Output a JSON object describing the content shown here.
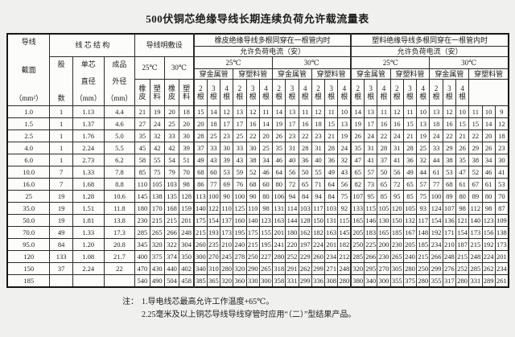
{
  "title": "500伏铜芯绝缘导线长期连续负荷允许载流量表",
  "notes": {
    "label": "注：",
    "items": [
      "1.导电线芯最高允许工作温度+65℃。",
      "2.25毫米及以上铜芯导线导线穿管时应用“（二）”型结果产品。"
    ]
  },
  "table": {
    "header_rows": [
      [
        {
          "lines": [
            "导线",
            "截面",
            "（mm²）"
          ],
          "rs": 5,
          "cls": "tall",
          "name": "header-conductor-cross-section"
        },
        {
          "t": "线 芯 结 构",
          "cs": 3,
          "rs": 2,
          "name": "header-core-structure"
        },
        {
          "t": "导线明敷设",
          "cs": 4,
          "rs": 2,
          "name": "header-open-wiring"
        },
        {
          "t": "橡皮绝缘导线多根同穿在一根管内时",
          "cs": 12,
          "name": "header-rubber-insulated-section"
        },
        {
          "t": "塑料绝缘导线多根同穿在一根管内时",
          "cs": 12,
          "name": "header-plastic-insulated-section"
        }
      ],
      [
        {
          "t": "允许负荷电流（安）",
          "cs": 12,
          "name": "header-allowed-load-current"
        },
        {
          "t": "允许负荷电流（安）",
          "cs": 12,
          "name": "header-allowed-load-current"
        }
      ],
      [
        {
          "lines": [
            "股",
            "数"
          ],
          "rs": 3,
          "cls": "sp",
          "name": "header-strand-count"
        },
        {
          "lines": [
            "单芯",
            "直径",
            "（mm）"
          ],
          "rs": 3,
          "cls": "sp",
          "name": "header-single-core-diameter"
        },
        {
          "lines": [
            "成品",
            "外径",
            "（mm）"
          ],
          "rs": 3,
          "cls": "sp",
          "name": "header-finished-outer-diameter"
        },
        {
          "t": "25℃",
          "cs": 2,
          "rs": 2,
          "name": "header-temp-25"
        },
        {
          "t": "30℃",
          "cs": 2,
          "rs": 2,
          "name": "header-temp-30"
        },
        {
          "t": "25℃",
          "cs": 6,
          "name": "header-temp-25"
        },
        {
          "t": "30℃",
          "cs": 6,
          "name": "header-temp-30"
        },
        {
          "t": "25℃",
          "cs": 6,
          "name": "header-temp-25"
        },
        {
          "t": "30℃",
          "cs": 6,
          "name": "header-temp-30"
        }
      ],
      [
        {
          "t": "穿金属管",
          "cs": 3,
          "name": "header-metal-conduit"
        },
        {
          "t": "穿塑料管",
          "cs": 3,
          "name": "header-plastic-conduit"
        },
        {
          "t": "穿金属管",
          "cs": 3,
          "name": "header-metal-conduit"
        },
        {
          "t": "穿塑料管",
          "cs": 3,
          "name": "header-plastic-conduit"
        },
        {
          "t": "穿金属管",
          "cs": 3,
          "name": "header-metal-conduit"
        },
        {
          "t": "穿塑料管",
          "cs": 3,
          "name": "header-plastic-conduit"
        },
        {
          "t": "穿金属管",
          "cs": 3,
          "name": "header-metal-conduit"
        },
        {
          "t": "穿塑料管",
          "cs": 3,
          "name": "header-plastic-conduit"
        }
      ],
      [
        {
          "lines": [
            "橡",
            "皮"
          ],
          "name": "header-rubber"
        },
        {
          "lines": [
            "塑",
            "料"
          ],
          "name": "header-plastic"
        },
        {
          "lines": [
            "橡",
            "皮"
          ],
          "name": "header-rubber"
        },
        {
          "lines": [
            "塑",
            "料"
          ],
          "name": "header-plastic"
        },
        {
          "lines": [
            "2",
            "根"
          ],
          "name": "header-2-wires"
        },
        {
          "lines": [
            "3",
            "根"
          ],
          "name": "header-3-wires"
        },
        {
          "lines": [
            "4",
            "根"
          ],
          "name": "header-4-wires"
        },
        {
          "lines": [
            "2",
            "根"
          ],
          "name": "header-2-wires"
        },
        {
          "lines": [
            "3",
            "根"
          ],
          "name": "header-3-wires"
        },
        {
          "lines": [
            "4",
            "根"
          ],
          "name": "header-4-wires"
        },
        {
          "lines": [
            "2",
            "根"
          ],
          "name": "header-2-wires"
        },
        {
          "lines": [
            "3",
            "根"
          ],
          "name": "header-3-wires"
        },
        {
          "lines": [
            "4",
            "根"
          ],
          "name": "header-4-wires"
        },
        {
          "lines": [
            "2",
            "根"
          ],
          "name": "header-2-wires"
        },
        {
          "lines": [
            "3",
            "根"
          ],
          "name": "header-3-wires"
        },
        {
          "lines": [
            "4",
            "根"
          ],
          "name": "header-4-wires"
        },
        {
          "lines": [
            "2",
            "根"
          ],
          "name": "header-2-wires"
        },
        {
          "lines": [
            "3",
            "根"
          ],
          "name": "header-3-wires"
        },
        {
          "lines": [
            "4",
            "根"
          ],
          "name": "header-4-wires"
        },
        {
          "lines": [
            "2",
            "根"
          ],
          "name": "header-2-wires"
        },
        {
          "lines": [
            "3",
            "根"
          ],
          "name": "header-3-wires"
        },
        {
          "lines": [
            "4",
            "根"
          ],
          "name": "header-4-wires"
        },
        {
          "lines": [
            "2",
            "根"
          ],
          "name": "header-2-wires"
        },
        {
          "lines": [
            "3",
            "根"
          ],
          "name": "header-3-wires"
        },
        {
          "lines": [
            "4",
            "根"
          ],
          "name": "header-4-wires"
        }
      ]
    ],
    "rows": [
      [
        "1.0",
        "1",
        "1.13",
        "4.4",
        "21",
        "19",
        "20",
        "18",
        "15",
        "14",
        "12",
        "13",
        "12",
        "11",
        "14",
        "13",
        "11",
        "12",
        "11",
        "10",
        "14",
        "13",
        "11",
        "12",
        "11",
        "10",
        "13",
        "12",
        "10",
        "11",
        "10",
        "9"
      ],
      [
        "1.5",
        "1",
        "1.37",
        "4.6",
        "27",
        "24",
        "25",
        "20",
        "20",
        "18",
        "17",
        "17",
        "16",
        "14",
        "19",
        "17",
        "16",
        "18",
        "15",
        "13",
        "19",
        "17",
        "16",
        "16",
        "15",
        "13",
        "18",
        "16",
        "15",
        "15",
        "14",
        "12"
      ],
      [
        "2.5",
        "1",
        "1.76",
        "5.0",
        "35",
        "32",
        "33",
        "30",
        "28",
        "25",
        "23",
        "25",
        "22",
        "20",
        "26",
        "23",
        "22",
        "23",
        "21",
        "19",
        "26",
        "24",
        "22",
        "24",
        "21",
        "19",
        "24",
        "22",
        "21",
        "22",
        "20",
        "18"
      ],
      [
        "4.0",
        "1",
        "2.24",
        "5.5",
        "45",
        "42",
        "42",
        "39",
        "37",
        "33",
        "30",
        "33",
        "30",
        "25",
        "35",
        "31",
        "28",
        "31",
        "28",
        "24",
        "35",
        "31",
        "28",
        "31",
        "28",
        "25",
        "33",
        "29",
        "26",
        "29",
        "26",
        "23"
      ],
      [
        "6.0",
        "1",
        "2.73",
        "6.2",
        "58",
        "55",
        "54",
        "51",
        "49",
        "43",
        "39",
        "43",
        "38",
        "34",
        "46",
        "40",
        "36",
        "40",
        "36",
        "32",
        "47",
        "41",
        "37",
        "41",
        "36",
        "32",
        "44",
        "38",
        "35",
        "38",
        "34",
        "30"
      ],
      [
        "10.0",
        "7",
        "1.33",
        "7.8",
        "85",
        "75",
        "79",
        "70",
        "68",
        "60",
        "53",
        "59",
        "52",
        "46",
        "64",
        "56",
        "50",
        "55",
        "49",
        "43",
        "65",
        "57",
        "50",
        "56",
        "49",
        "44",
        "61",
        "53",
        "47",
        "52",
        "46",
        "41"
      ],
      [
        "16.0",
        "7",
        "1.68",
        "8.8",
        "110",
        "105",
        "103",
        "98",
        "86",
        "77",
        "69",
        "76",
        "68",
        "60",
        "80",
        "72",
        "65",
        "71",
        "64",
        "56",
        "82",
        "73",
        "65",
        "72",
        "65",
        "57",
        "77",
        "68",
        "61",
        "67",
        "61",
        "53"
      ],
      [
        "25",
        "19",
        "1.28",
        "10.6",
        "145",
        "138",
        "135",
        "128",
        "113",
        "100",
        "90",
        "100",
        "90",
        "80",
        "106",
        "94",
        "84",
        "94",
        "84",
        "75",
        "107",
        "95",
        "85",
        "95",
        "85",
        "75",
        "100",
        "89",
        "80",
        "89",
        "80",
        "70"
      ],
      [
        "35.0",
        "19",
        "1.51",
        "11.8",
        "180",
        "170",
        "168",
        "159",
        "140",
        "122",
        "110",
        "125",
        "110",
        "98",
        "131",
        "114",
        "103",
        "117",
        "103",
        "92",
        "133",
        "115",
        "105",
        "120",
        "105",
        "93",
        "124",
        "107",
        "98",
        "112",
        "98",
        "87"
      ],
      [
        "50.0",
        "19",
        "1.81",
        "13.8",
        "230",
        "215",
        "215",
        "201",
        "175",
        "154",
        "137",
        "160",
        "140",
        "123",
        "163",
        "144",
        "128",
        "150",
        "131",
        "115",
        "165",
        "146",
        "130",
        "150",
        "132",
        "117",
        "154",
        "136",
        "121",
        "140",
        "123",
        "109"
      ],
      [
        "70.0",
        "49",
        "1.33",
        "17.3",
        "285",
        "265",
        "266",
        "248",
        "215",
        "193",
        "173",
        "195",
        "175",
        "155",
        "201",
        "180",
        "162",
        "182",
        "163",
        "145",
        "205",
        "183",
        "165",
        "185",
        "167",
        "148",
        "192",
        "171",
        "154",
        "173",
        "156",
        "138"
      ],
      [
        "95.0",
        "84",
        "1.20",
        "20.8",
        "345",
        "320",
        "322",
        "304",
        "260",
        "235",
        "210",
        "240",
        "215",
        "195",
        "241",
        "220",
        "197",
        "224",
        "201",
        "182",
        "250",
        "225",
        "200",
        "230",
        "205",
        "185",
        "234",
        "210",
        "187",
        "215",
        "192",
        "173"
      ],
      [
        "120",
        "133",
        "1.08",
        "21.7",
        "400",
        "375",
        "374",
        "350",
        "300",
        "270",
        "245",
        "278",
        "250",
        "227",
        "280",
        "252",
        "229",
        "260",
        "234",
        "212",
        "285",
        "266",
        "230",
        "265",
        "240",
        "215",
        "266",
        "248",
        "215",
        "248",
        "224",
        "201"
      ],
      [
        "150",
        "37",
        "2.24",
        "22",
        "470",
        "430",
        "440",
        "402",
        "340",
        "310",
        "280",
        "320",
        "290",
        "265",
        "318",
        "291",
        "262",
        "299",
        "271",
        "248",
        "320",
        "295",
        "270",
        "305",
        "280",
        "250",
        "299",
        "276",
        "252",
        "285",
        "262",
        "234"
      ],
      [
        "185",
        "",
        "",
        "",
        "540",
        "490",
        "504",
        "458",
        "385",
        "365",
        "320",
        "360",
        "330",
        "300",
        "358",
        "331",
        "299",
        "336",
        "308",
        "280",
        "380",
        "340",
        "300",
        "355",
        "375",
        "280",
        "355",
        "317",
        "280",
        "331",
        "289",
        "261"
      ]
    ]
  }
}
